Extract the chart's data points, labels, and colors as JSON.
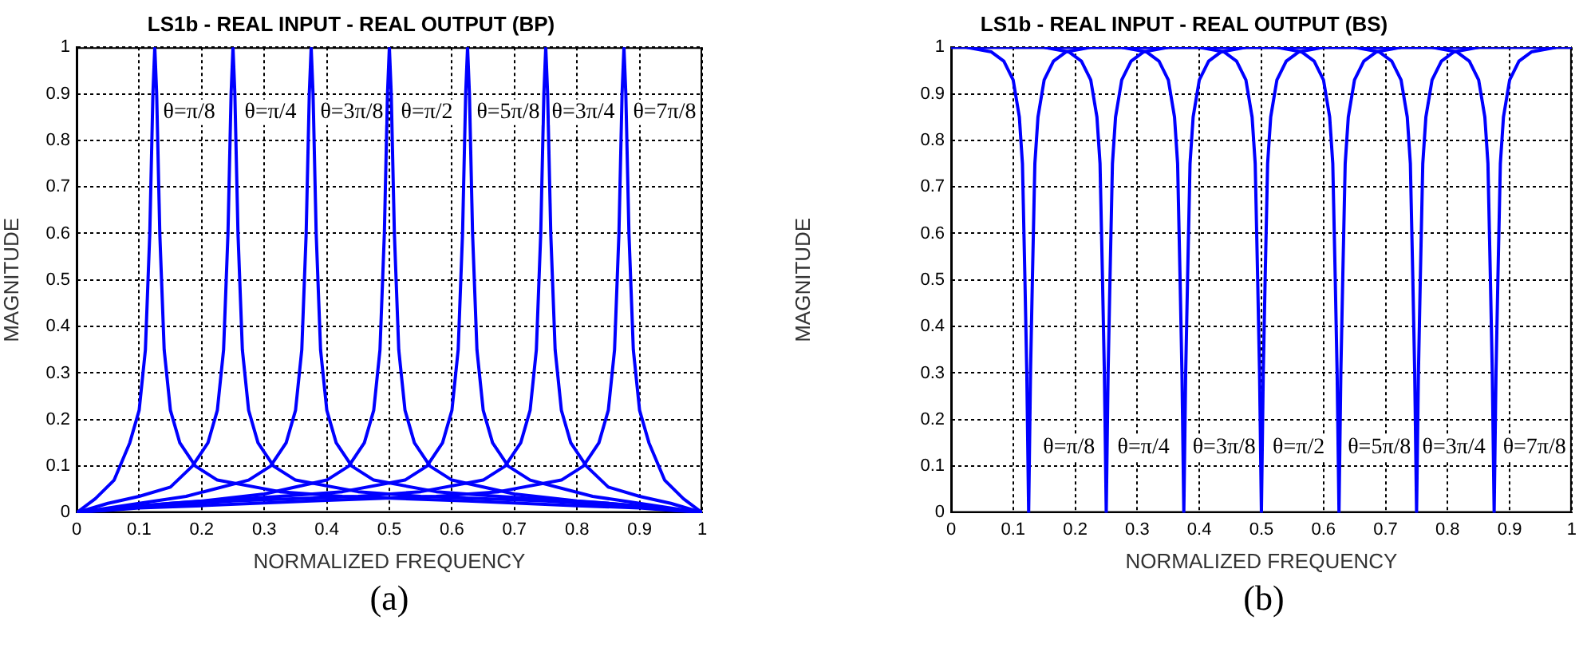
{
  "chart_data": [
    {
      "type": "line",
      "title": "LS1b - REAL INPUT - REAL OUTPUT (BP)",
      "xlabel": "NORMALIZED FREQUENCY",
      "ylabel": "MAGNITUDE",
      "xlim": [
        0,
        1
      ],
      "ylim": [
        0,
        1
      ],
      "xticks": [
        0,
        0.1,
        0.2,
        0.3,
        0.4,
        0.5,
        0.6,
        0.7,
        0.8,
        0.9,
        1
      ],
      "yticks": [
        0,
        0.1,
        0.2,
        0.3,
        0.4,
        0.5,
        0.6,
        0.7,
        0.8,
        0.9,
        1
      ],
      "grid": true,
      "legend": false,
      "marker": "none",
      "line_style": "solid",
      "series": [
        {
          "color": "#0000ff",
          "x": [
            0,
            0.03,
            0.06,
            0.085,
            0.1,
            0.11,
            0.117,
            0.122,
            0.125,
            0.128,
            0.133,
            0.14,
            0.15,
            0.165,
            0.19,
            0.225,
            0.325,
            0.425,
            0.625,
            0.8,
            0.9,
            1
          ],
          "values": [
            0,
            0.03,
            0.07,
            0.15,
            0.22,
            0.35,
            0.6,
            0.9,
            1,
            0.9,
            0.6,
            0.35,
            0.22,
            0.15,
            0.1,
            0.07,
            0.045,
            0.035,
            0.025,
            0.015,
            0.01,
            0
          ]
        },
        {
          "color": "#0000ff",
          "x": [
            0,
            0.05,
            0.1,
            0.15,
            0.185,
            0.21,
            0.225,
            0.235,
            0.242,
            0.247,
            0.25,
            0.253,
            0.258,
            0.265,
            0.275,
            0.29,
            0.315,
            0.35,
            0.45,
            0.55,
            0.75,
            0.9,
            1
          ],
          "values": [
            0,
            0.02,
            0.035,
            0.055,
            0.1,
            0.15,
            0.22,
            0.35,
            0.6,
            0.9,
            1,
            0.9,
            0.6,
            0.35,
            0.22,
            0.15,
            0.1,
            0.07,
            0.045,
            0.035,
            0.025,
            0.012,
            0
          ]
        },
        {
          "color": "#0000ff",
          "x": [
            0,
            0.1,
            0.175,
            0.275,
            0.31,
            0.335,
            0.35,
            0.36,
            0.367,
            0.372,
            0.375,
            0.378,
            0.383,
            0.39,
            0.4,
            0.415,
            0.44,
            0.475,
            0.575,
            0.675,
            0.85,
            1
          ],
          "values": [
            0,
            0.02,
            0.035,
            0.07,
            0.1,
            0.15,
            0.22,
            0.35,
            0.6,
            0.9,
            1,
            0.9,
            0.6,
            0.35,
            0.22,
            0.15,
            0.1,
            0.07,
            0.045,
            0.035,
            0.02,
            0
          ]
        },
        {
          "color": "#0000ff",
          "x": [
            0,
            0.1,
            0.2,
            0.3,
            0.4,
            0.435,
            0.46,
            0.475,
            0.485,
            0.492,
            0.497,
            0.5,
            0.503,
            0.508,
            0.515,
            0.525,
            0.54,
            0.565,
            0.6,
            0.7,
            0.8,
            0.9,
            1
          ],
          "values": [
            0,
            0.015,
            0.025,
            0.04,
            0.07,
            0.1,
            0.15,
            0.22,
            0.35,
            0.6,
            0.9,
            1,
            0.9,
            0.6,
            0.35,
            0.22,
            0.15,
            0.1,
            0.07,
            0.04,
            0.025,
            0.015,
            0
          ]
        },
        {
          "color": "#0000ff",
          "x": [
            0,
            0.15,
            0.325,
            0.425,
            0.525,
            0.56,
            0.585,
            0.6,
            0.61,
            0.617,
            0.622,
            0.625,
            0.628,
            0.633,
            0.64,
            0.65,
            0.665,
            0.69,
            0.725,
            0.825,
            0.9,
            1
          ],
          "values": [
            0,
            0.02,
            0.035,
            0.045,
            0.07,
            0.1,
            0.15,
            0.22,
            0.35,
            0.6,
            0.9,
            1,
            0.9,
            0.6,
            0.35,
            0.22,
            0.15,
            0.1,
            0.07,
            0.035,
            0.02,
            0
          ]
        },
        {
          "color": "#0000ff",
          "x": [
            0,
            0.1,
            0.25,
            0.45,
            0.55,
            0.65,
            0.685,
            0.71,
            0.725,
            0.735,
            0.742,
            0.747,
            0.75,
            0.753,
            0.758,
            0.765,
            0.775,
            0.79,
            0.815,
            0.85,
            0.9,
            0.95,
            1
          ],
          "values": [
            0,
            0.012,
            0.025,
            0.035,
            0.045,
            0.07,
            0.1,
            0.15,
            0.22,
            0.35,
            0.6,
            0.9,
            1,
            0.9,
            0.6,
            0.35,
            0.22,
            0.15,
            0.1,
            0.055,
            0.035,
            0.02,
            0
          ]
        },
        {
          "color": "#0000ff",
          "x": [
            0,
            0.1,
            0.2,
            0.375,
            0.575,
            0.675,
            0.775,
            0.81,
            0.835,
            0.85,
            0.86,
            0.867,
            0.872,
            0.875,
            0.878,
            0.883,
            0.89,
            0.9,
            0.915,
            0.94,
            0.97,
            1
          ],
          "values": [
            0,
            0.01,
            0.015,
            0.025,
            0.035,
            0.045,
            0.07,
            0.1,
            0.15,
            0.22,
            0.35,
            0.6,
            0.9,
            1,
            0.9,
            0.6,
            0.35,
            0.22,
            0.15,
            0.07,
            0.03,
            0
          ]
        }
      ],
      "annotations": [
        {
          "text": "θ=π/8",
          "x": 0.18,
          "y": 0.86
        },
        {
          "text": "θ=π/4",
          "x": 0.31,
          "y": 0.86
        },
        {
          "text": "θ=3π/8",
          "x": 0.44,
          "y": 0.86
        },
        {
          "text": "θ=π/2",
          "x": 0.56,
          "y": 0.86
        },
        {
          "text": "θ=5π/8",
          "x": 0.69,
          "y": 0.86
        },
        {
          "text": "θ=3π/4",
          "x": 0.81,
          "y": 0.86
        },
        {
          "text": "θ=7π/8",
          "x": 0.94,
          "y": 0.86
        },
        "(a)"
      ]
    },
    {
      "type": "line",
      "title": "LS1b - REAL INPUT - REAL OUTPUT (BS)",
      "xlabel": "NORMALIZED FREQUENCY",
      "ylabel": "MAGNITUDE",
      "xlim": [
        0,
        1
      ],
      "ylim": [
        0,
        1
      ],
      "xticks": [
        0,
        0.1,
        0.2,
        0.3,
        0.4,
        0.5,
        0.6,
        0.7,
        0.8,
        0.9,
        1
      ],
      "yticks": [
        0,
        0.1,
        0.2,
        0.3,
        0.4,
        0.5,
        0.6,
        0.7,
        0.8,
        0.9,
        1
      ],
      "grid": true,
      "legend": false,
      "marker": "none",
      "line_style": "solid",
      "series": [
        {
          "color": "#0000ff",
          "x": [
            0,
            0.025,
            0.065,
            0.085,
            0.1,
            0.11,
            0.115,
            0.119,
            0.122,
            0.125,
            0.128,
            0.131,
            0.135,
            0.14,
            0.15,
            0.165,
            0.185,
            0.225,
            0.35
          ],
          "values": [
            1,
            1,
            0.99,
            0.97,
            0.93,
            0.85,
            0.75,
            0.5,
            0.3,
            0,
            0.3,
            0.5,
            0.75,
            0.85,
            0.93,
            0.97,
            0.99,
            1,
            1
          ]
        },
        {
          "color": "#0000ff",
          "x": [
            0.025,
            0.15,
            0.19,
            0.21,
            0.225,
            0.235,
            0.24,
            0.244,
            0.247,
            0.25,
            0.253,
            0.256,
            0.26,
            0.265,
            0.275,
            0.29,
            0.31,
            0.35,
            0.475
          ],
          "values": [
            1,
            1,
            0.99,
            0.97,
            0.93,
            0.85,
            0.75,
            0.5,
            0.3,
            0,
            0.3,
            0.5,
            0.75,
            0.85,
            0.93,
            0.97,
            0.99,
            1,
            1
          ]
        },
        {
          "color": "#0000ff",
          "x": [
            0.15,
            0.275,
            0.315,
            0.335,
            0.35,
            0.36,
            0.365,
            0.369,
            0.372,
            0.375,
            0.378,
            0.381,
            0.385,
            0.39,
            0.4,
            0.415,
            0.435,
            0.475,
            0.6
          ],
          "values": [
            1,
            1,
            0.99,
            0.97,
            0.93,
            0.85,
            0.75,
            0.5,
            0.3,
            0,
            0.3,
            0.5,
            0.75,
            0.85,
            0.93,
            0.97,
            0.99,
            1,
            1
          ]
        },
        {
          "color": "#0000ff",
          "x": [
            0.275,
            0.4,
            0.44,
            0.46,
            0.475,
            0.485,
            0.49,
            0.494,
            0.497,
            0.5,
            0.503,
            0.506,
            0.51,
            0.515,
            0.525,
            0.54,
            0.56,
            0.6,
            0.725
          ],
          "values": [
            1,
            1,
            0.99,
            0.97,
            0.93,
            0.85,
            0.75,
            0.5,
            0.3,
            0,
            0.3,
            0.5,
            0.75,
            0.85,
            0.93,
            0.97,
            0.99,
            1,
            1
          ]
        },
        {
          "color": "#0000ff",
          "x": [
            0.4,
            0.525,
            0.565,
            0.585,
            0.6,
            0.61,
            0.615,
            0.619,
            0.622,
            0.625,
            0.628,
            0.631,
            0.635,
            0.64,
            0.65,
            0.665,
            0.685,
            0.725,
            0.85
          ],
          "values": [
            1,
            1,
            0.99,
            0.97,
            0.93,
            0.85,
            0.75,
            0.5,
            0.3,
            0,
            0.3,
            0.5,
            0.75,
            0.85,
            0.93,
            0.97,
            0.99,
            1,
            1
          ]
        },
        {
          "color": "#0000ff",
          "x": [
            0.525,
            0.65,
            0.69,
            0.71,
            0.725,
            0.735,
            0.74,
            0.744,
            0.747,
            0.75,
            0.753,
            0.756,
            0.76,
            0.765,
            0.775,
            0.79,
            0.81,
            0.85,
            0.975
          ],
          "values": [
            1,
            1,
            0.99,
            0.97,
            0.93,
            0.85,
            0.75,
            0.5,
            0.3,
            0,
            0.3,
            0.5,
            0.75,
            0.85,
            0.93,
            0.97,
            0.99,
            1,
            1
          ]
        },
        {
          "color": "#0000ff",
          "x": [
            0.65,
            0.775,
            0.815,
            0.835,
            0.85,
            0.86,
            0.865,
            0.869,
            0.872,
            0.875,
            0.878,
            0.881,
            0.885,
            0.89,
            0.9,
            0.915,
            0.935,
            0.975,
            1
          ],
          "values": [
            1,
            1,
            0.99,
            0.97,
            0.93,
            0.85,
            0.75,
            0.5,
            0.3,
            0,
            0.3,
            0.5,
            0.75,
            0.85,
            0.93,
            0.97,
            0.99,
            1,
            1
          ]
        }
      ],
      "annotations": [
        {
          "text": "θ=π/8",
          "x": 0.19,
          "y": 0.14
        },
        {
          "text": "θ=π/4",
          "x": 0.31,
          "y": 0.14
        },
        {
          "text": "θ=3π/8",
          "x": 0.44,
          "y": 0.14
        },
        {
          "text": "θ=π/2",
          "x": 0.56,
          "y": 0.14
        },
        {
          "text": "θ=5π/8",
          "x": 0.69,
          "y": 0.14
        },
        {
          "text": "θ=3π/4",
          "x": 0.81,
          "y": 0.14
        },
        {
          "text": "θ=7π/8",
          "x": 0.94,
          "y": 0.14
        },
        "(b)"
      ]
    }
  ]
}
